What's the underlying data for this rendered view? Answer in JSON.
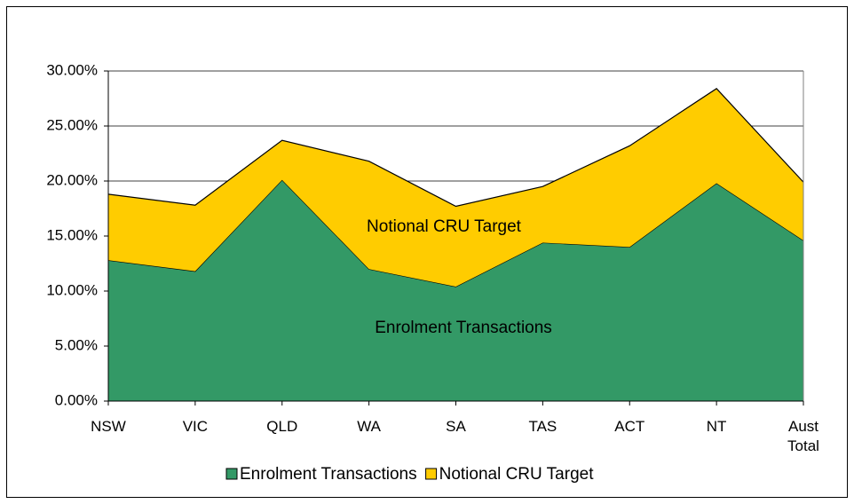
{
  "chart_data": {
    "type": "stacked_area",
    "categories": [
      "NSW",
      "VIC",
      "QLD",
      "WA",
      "SA",
      "TAS",
      "ACT",
      "NT",
      "Aust Total"
    ],
    "series": [
      {
        "name": "Enrolment Transactions",
        "color": "#339966",
        "values": [
          12.8,
          11.8,
          20.1,
          12.0,
          10.4,
          14.4,
          14.0,
          19.8,
          14.6
        ]
      },
      {
        "name": "Notional CRU Target",
        "color": "#ffcc00",
        "values": [
          6.0,
          6.0,
          3.6,
          9.8,
          7.3,
          5.1,
          9.2,
          8.6,
          5.3
        ]
      }
    ],
    "annotations": [
      "Notional CRU Target",
      "Enrolment Transactions"
    ],
    "ylim": [
      0,
      30
    ],
    "yticks": [
      {
        "value": 0,
        "label": "0.00%"
      },
      {
        "value": 5,
        "label": "5.00%"
      },
      {
        "value": 10,
        "label": "10.00%"
      },
      {
        "value": 15,
        "label": "15.00%"
      },
      {
        "value": 20,
        "label": "20.00%"
      },
      {
        "value": 25,
        "label": "25.00%"
      },
      {
        "value": 30,
        "label": "30.00%"
      }
    ],
    "grid": true,
    "legend": "bottom"
  }
}
